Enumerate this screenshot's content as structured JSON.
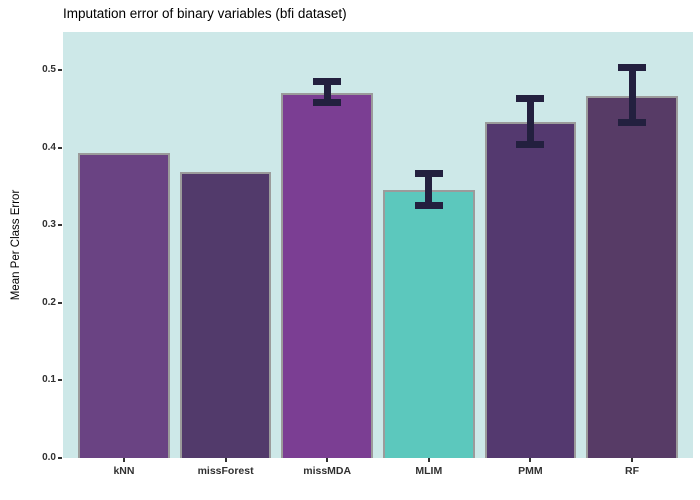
{
  "chart_data": {
    "type": "bar",
    "title": "Imputation error of binary variables (bfi dataset)",
    "ylabel": "Mean Per Class Error",
    "xlabel": "",
    "categories": [
      "kNN",
      "missForest",
      "missMDA",
      "MLIM",
      "PMM",
      "RF"
    ],
    "values": [
      0.393,
      0.369,
      0.47,
      0.346,
      0.433,
      0.466
    ],
    "error_low": [
      null,
      null,
      0.458,
      0.326,
      0.404,
      0.432
    ],
    "error_high": [
      null,
      null,
      0.485,
      0.367,
      0.463,
      0.503
    ],
    "bar_colors": [
      "#6a4383",
      "#523a6b",
      "#7b3e93",
      "#5cc8bd",
      "#54396f",
      "#573b66"
    ],
    "bar_border_color": "#9b9b9b",
    "errorbar_color": "#23203f",
    "panel_bg": "#cde8e8",
    "outer_bg": "#ffffff",
    "ylim": [
      0,
      0.549
    ],
    "ytick_labels": [
      "0.0",
      "0.1",
      "0.2",
      "0.3",
      "0.4",
      "0.5"
    ],
    "ytick_values": [
      0,
      0.1,
      0.2,
      0.3,
      0.4,
      0.5
    ],
    "grid": false,
    "legend": "none"
  }
}
